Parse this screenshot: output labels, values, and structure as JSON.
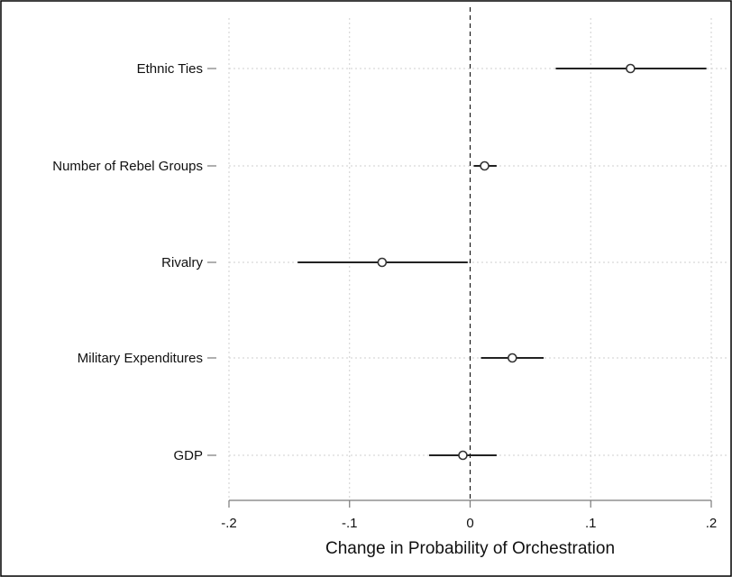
{
  "chart_data": {
    "type": "scatter",
    "subtype": "coefficient-plot",
    "title": "",
    "xlabel": "Change in Probability of Orchestration",
    "ylabel": "",
    "xlim": [
      -0.2,
      0.2
    ],
    "x_ticks": [
      -0.2,
      -0.1,
      0,
      0.1,
      0.2
    ],
    "x_tick_labels": [
      "-.2",
      "-.1",
      "0",
      ".1",
      ".2"
    ],
    "reference_line": 0,
    "grid": true,
    "categories": [
      "Ethnic Ties",
      "Number of Rebel Groups",
      "Rivalry",
      "Military Expenditures",
      "GDP"
    ],
    "points": [
      {
        "label": "Ethnic Ties",
        "estimate": 0.133,
        "lower": 0.071,
        "upper": 0.196
      },
      {
        "label": "Number of Rebel Groups",
        "estimate": 0.012,
        "lower": 0.003,
        "upper": 0.022
      },
      {
        "label": "Rivalry",
        "estimate": -0.073,
        "lower": -0.143,
        "upper": -0.002
      },
      {
        "label": "Military Expenditures",
        "estimate": 0.035,
        "lower": 0.009,
        "upper": 0.061
      },
      {
        "label": "GDP",
        "estimate": -0.006,
        "lower": -0.034,
        "upper": 0.022
      }
    ]
  }
}
